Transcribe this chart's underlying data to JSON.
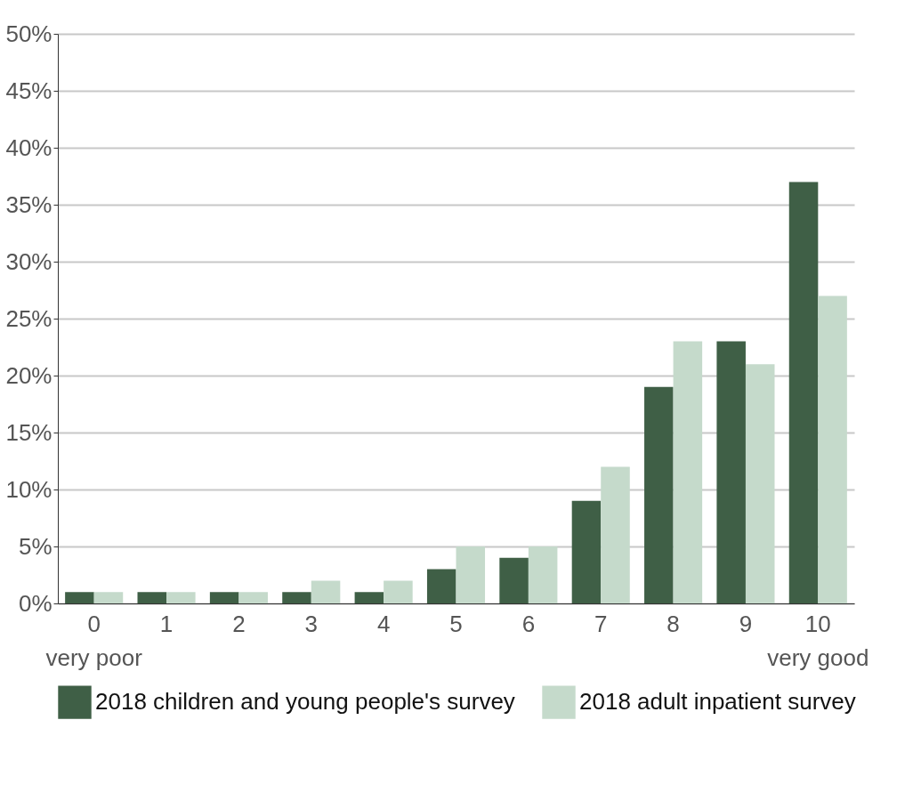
{
  "chart_data": {
    "type": "bar",
    "categories": [
      "0\nvery poor",
      "1",
      "2",
      "3",
      "4",
      "5",
      "6",
      "7",
      "8",
      "9",
      "10\nvery good"
    ],
    "series": [
      {
        "name": "2018 children and young people's survey",
        "color": "#3f5f46",
        "values": [
          1,
          1,
          1,
          1,
          1,
          3,
          4,
          9,
          19,
          23,
          37
        ]
      },
      {
        "name": "2018 adult inpatient survey",
        "color": "#c5dacb",
        "values": [
          1,
          1,
          1,
          2,
          2,
          5,
          5,
          12,
          23,
          21,
          27
        ]
      }
    ],
    "ylim": [
      0,
      50
    ],
    "yticks": [
      {
        "value": 0,
        "label": "0%"
      },
      {
        "value": 5,
        "label": "5%"
      },
      {
        "value": 10,
        "label": "10%"
      },
      {
        "value": 15,
        "label": "15%"
      },
      {
        "value": 20,
        "label": "20%"
      },
      {
        "value": 25,
        "label": "25%"
      },
      {
        "value": 30,
        "label": "30%"
      },
      {
        "value": 35,
        "label": "35%"
      },
      {
        "value": 40,
        "label": "40%"
      },
      {
        "value": 45,
        "label": "45%"
      },
      {
        "value": 50,
        "label": "50%"
      }
    ],
    "grid": "y",
    "legend": "bottom"
  }
}
